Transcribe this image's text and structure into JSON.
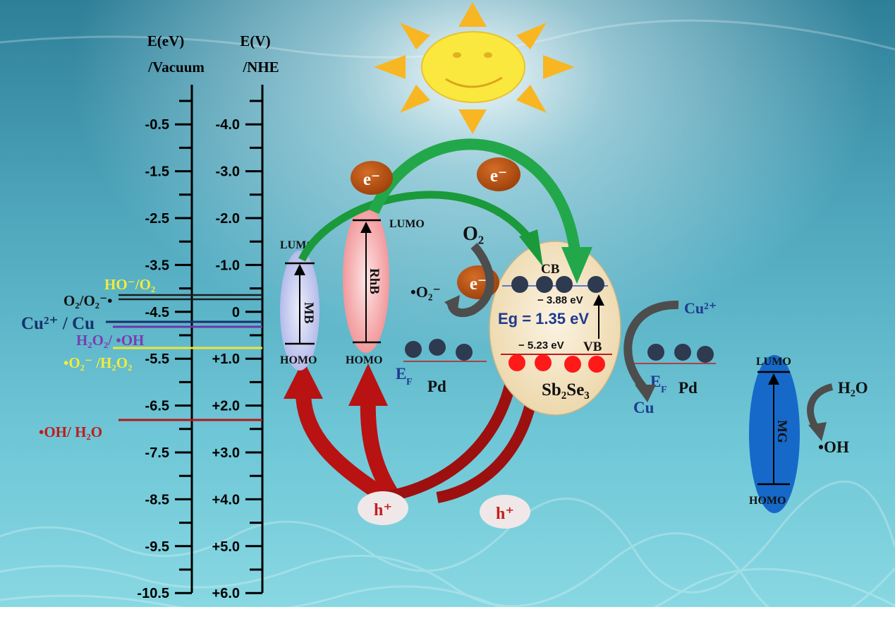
{
  "axes": {
    "vacuum": {
      "title_line1": "E(eV)",
      "title_line2": "/Vacuum",
      "ticks": [
        "-0.5",
        "-1.5",
        "-2.5",
        "-3.5",
        "-4.5",
        "-5.5",
        "-6.5",
        "-7.5",
        "-8.5",
        "-9.5",
        "-10.5"
      ]
    },
    "nhe": {
      "title_line1": "E(V)",
      "title_line2": "/NHE",
      "ticks": [
        "-4.0",
        "-3.0",
        "-2.0",
        "-1.0",
        "0",
        "+1.0",
        "+2.0",
        "+3.0",
        "+4.0",
        "+5.0",
        "+6.0"
      ]
    }
  },
  "redox": {
    "ho_o2": "HO⁻/O₂",
    "o2_o2_radical": "O₂/O₂⁻•",
    "cu_cu2": "Cu²⁺ / Cu",
    "h2o2_oh": "H₂O₂/ •OH",
    "o2rad_h2o2": "•O₂⁻ /H₂O₂",
    "oh_h2o": "•OH/ H₂O"
  },
  "dyes": {
    "mb": {
      "name": "MB",
      "lumo": "LUMO",
      "homo": "HOMO"
    },
    "rhb": {
      "name": "RhB",
      "lumo": "LUMO",
      "homo": "HOMO"
    },
    "mg": {
      "name": "MG",
      "lumo": "LUMO",
      "homo": "HOMO"
    }
  },
  "electron": "e⁻",
  "hole": "h⁺",
  "sb2se3": {
    "name": "Sb₂Se₃",
    "cb": "CB",
    "vb": "VB",
    "cb_energy": "− 3.88 eV",
    "vb_energy": "− 5.23 eV",
    "eg": "Eg = 1.35 eV"
  },
  "pd_left": {
    "fermi": "E",
    "fermi_sub": "F",
    "metal": "Pd"
  },
  "pd_right": {
    "fermi": "E",
    "fermi_sub": "F",
    "metal": "Pd"
  },
  "species": {
    "o2": "O₂",
    "superoxide": "•O₂⁻",
    "cu2": "Cu²⁺",
    "cu": "Cu",
    "h2o": "H₂O",
    "oh": "•OH"
  },
  "colors": {
    "green_arrow": "#1a9a3a",
    "red_arrow": "#b81212",
    "electron": "#b8510f",
    "hole_bg": "#f0e8e8",
    "hole_text": "#c41e1e",
    "cb_electron": "#2e3a4f",
    "vb_hole": "#ff1a1a",
    "sb2se3_fill": "#f3e3c3",
    "mb_fill": "#cfd3f2",
    "rhb_fill": "#f5a8aa",
    "mg_fill": "#1669c9",
    "sun": "#fbe83e",
    "sun_ray": "#f8b623"
  }
}
